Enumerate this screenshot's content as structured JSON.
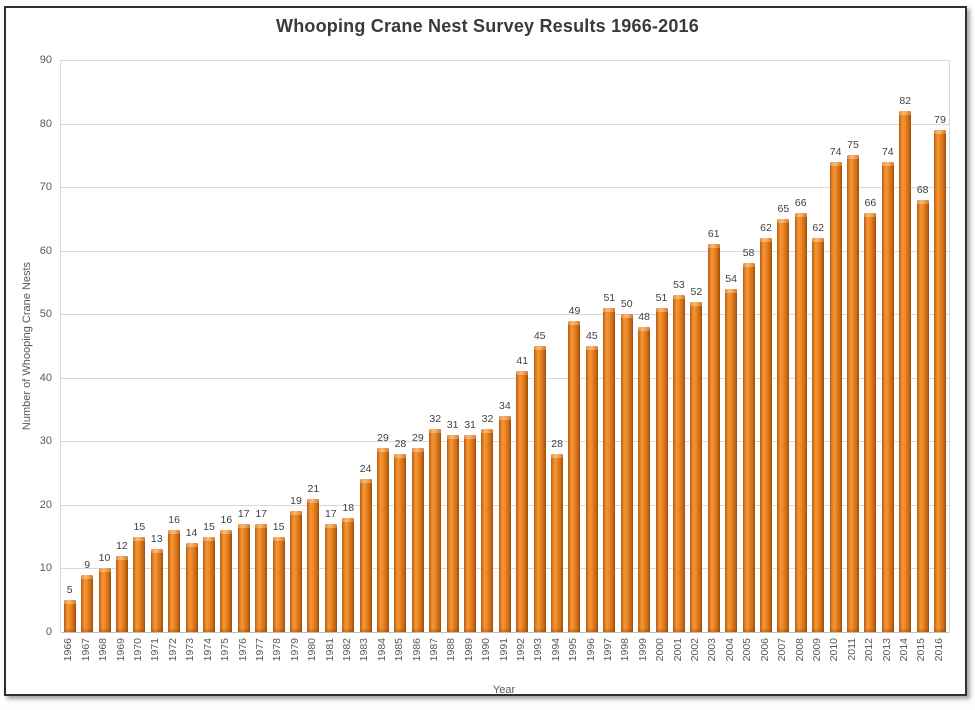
{
  "window": {
    "kind": "chart-image",
    "background_color": "#FFFFFF",
    "frame_border_color": "#2F2F2F"
  },
  "colors": {
    "title_text": "#3A3A3A",
    "axis_text": "#595959",
    "data_label_text": "#404040",
    "gridline": "#D9D9D9",
    "baseline": "#BFBFBF",
    "bar_main": "#E8821E",
    "bar_edge_dark": "#A1500E",
    "bar_highlight": "#F7BB7D"
  },
  "chart_data": {
    "type": "bar",
    "title": "Whooping Crane Nest Survey Results 1966-2016",
    "xlabel": "Year",
    "ylabel": "Number of Whooping Crane Nests",
    "ylim": [
      0,
      90
    ],
    "yticks": [
      0,
      10,
      20,
      30,
      40,
      50,
      60,
      70,
      80,
      90
    ],
    "grid": true,
    "legend_position": "none",
    "data_labels_shown": true,
    "categories": [
      "1966",
      "1967",
      "1968",
      "1969",
      "1970",
      "1971",
      "1972",
      "1973",
      "1974",
      "1975",
      "1976",
      "1977",
      "1978",
      "1979",
      "1980",
      "1981",
      "1982",
      "1983",
      "1984",
      "1985",
      "1986",
      "1987",
      "1988",
      "1989",
      "1990",
      "1991",
      "1992",
      "1993",
      "1994",
      "1995",
      "1996",
      "1997",
      "1998",
      "1999",
      "2000",
      "2001",
      "2002",
      "2003",
      "2004",
      "2005",
      "2006",
      "2007",
      "2008",
      "2009",
      "2010",
      "2011",
      "2012",
      "2013",
      "2014",
      "2015",
      "2016"
    ],
    "values": [
      5,
      9,
      10,
      12,
      15,
      13,
      16,
      14,
      15,
      16,
      17,
      17,
      15,
      19,
      21,
      17,
      18,
      24,
      29,
      28,
      29,
      32,
      31,
      31,
      32,
      34,
      41,
      45,
      28,
      49,
      45,
      51,
      50,
      48,
      51,
      53,
      52,
      61,
      54,
      58,
      62,
      65,
      66,
      62,
      74,
      75,
      66,
      74,
      82,
      68,
      79
    ]
  }
}
